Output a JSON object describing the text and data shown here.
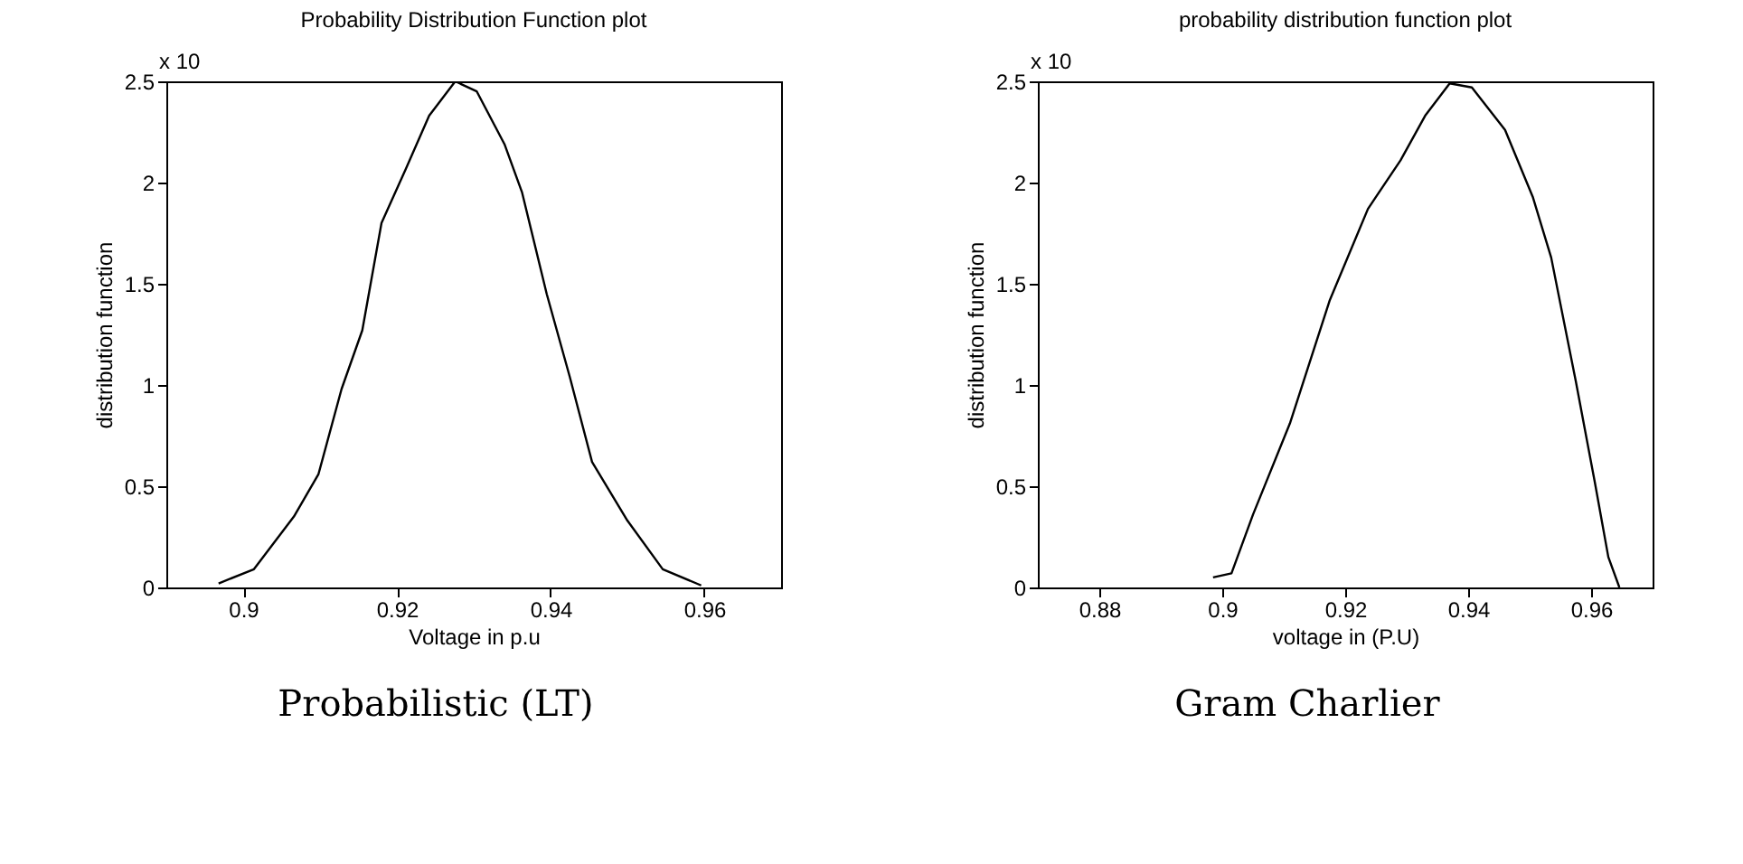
{
  "chart_data": [
    {
      "type": "line",
      "title": "Probability Distribution Function plot",
      "xlabel": "Voltage in p.u",
      "ylabel": "distribution function",
      "annotations": [
        "x 10",
        "Probabilistic (LT)"
      ],
      "xlim": [
        0.89,
        0.97
      ],
      "xticks": [
        0.9,
        0.92,
        0.94,
        0.96
      ],
      "ylim": [
        0,
        2.5
      ],
      "yticks": [
        0,
        0.5,
        1,
        1.5,
        2,
        2.5
      ],
      "series": [
        {
          "color": "#000000",
          "x": [
            0.8968,
            0.9014,
            0.9066,
            0.9098,
            0.9128,
            0.9155,
            0.918,
            0.9212,
            0.9242,
            0.9276,
            0.9304,
            0.934,
            0.9363,
            0.9395,
            0.9425,
            0.9454,
            0.95,
            0.9546,
            0.9596
          ],
          "values": [
            0.02,
            0.09,
            0.35,
            0.56,
            0.98,
            1.27,
            1.8,
            2.07,
            2.33,
            2.5,
            2.45,
            2.19,
            1.95,
            1.45,
            1.04,
            0.62,
            0.33,
            0.09,
            0.01
          ]
        }
      ]
    },
    {
      "type": "line",
      "title": "probability distribution function plot",
      "xlabel": "voltage in (P.U)",
      "ylabel": "distribution function",
      "annotations": [
        "x 10",
        "Gram Charlier"
      ],
      "xlim": [
        0.87,
        0.97
      ],
      "xticks": [
        0.88,
        0.9,
        0.92,
        0.94,
        0.96
      ],
      "ylim": [
        0,
        2.5
      ],
      "yticks": [
        0,
        0.5,
        1,
        1.5,
        2,
        2.5
      ],
      "series": [
        {
          "color": "#000000",
          "x": [
            0.8985,
            0.9015,
            0.905,
            0.911,
            0.9175,
            0.9237,
            0.929,
            0.933,
            0.937,
            0.9406,
            0.946,
            0.9505,
            0.9535,
            0.9575,
            0.9606,
            0.9628,
            0.9646
          ],
          "values": [
            0.05,
            0.07,
            0.36,
            0.81,
            1.42,
            1.87,
            2.11,
            2.33,
            2.49,
            2.47,
            2.26,
            1.93,
            1.63,
            1.02,
            0.52,
            0.15,
            0
          ]
        }
      ]
    }
  ]
}
